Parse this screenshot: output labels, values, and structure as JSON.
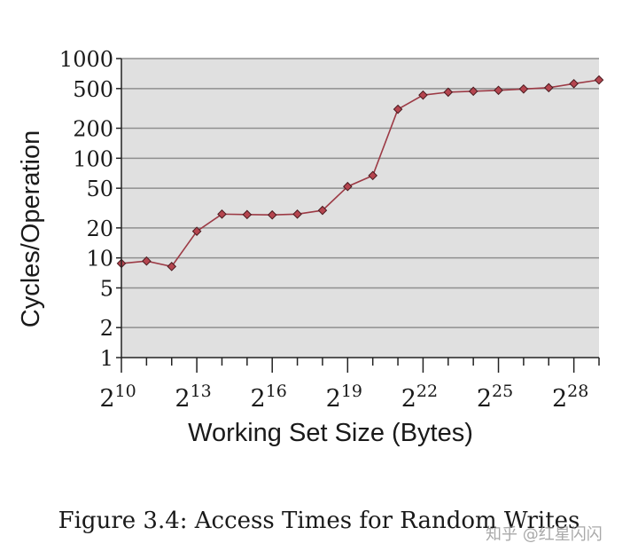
{
  "caption": "Figure 3.4: Access Times for Random Writes",
  "watermark": "知乎 @红星闪闪",
  "chart_data": {
    "type": "line",
    "xlabel": "Working Set Size (Bytes)",
    "ylabel": "Cycles/Operation",
    "x_scale": "log2",
    "y_scale": "log10",
    "xlim_exponent": [
      10,
      29
    ],
    "ylim": [
      1,
      1000
    ],
    "y_ticks": [
      1,
      2,
      5,
      10,
      20,
      50,
      100,
      200,
      500,
      1000
    ],
    "x_tick_base": "2",
    "x_tick_exponents": [
      "10",
      "13",
      "16",
      "19",
      "22",
      "25",
      "28"
    ],
    "grid": "horizontal",
    "series": [
      {
        "x_exponent": [
          10,
          11,
          12,
          13,
          14,
          15,
          16,
          17,
          18,
          19,
          20,
          21,
          22,
          23,
          24,
          25,
          26,
          27,
          28,
          29
        ],
        "values": [
          8.8,
          9.3,
          8.2,
          18.5,
          27.5,
          27.2,
          27.0,
          27.5,
          30.0,
          52,
          67,
          310,
          430,
          460,
          470,
          480,
          495,
          510,
          560,
          610
        ]
      }
    ],
    "colors": {
      "line": "#9c3a45",
      "marker": "#b5454f",
      "plot_bg": "#e0e0e0",
      "grid": "#8f8f8f"
    }
  }
}
